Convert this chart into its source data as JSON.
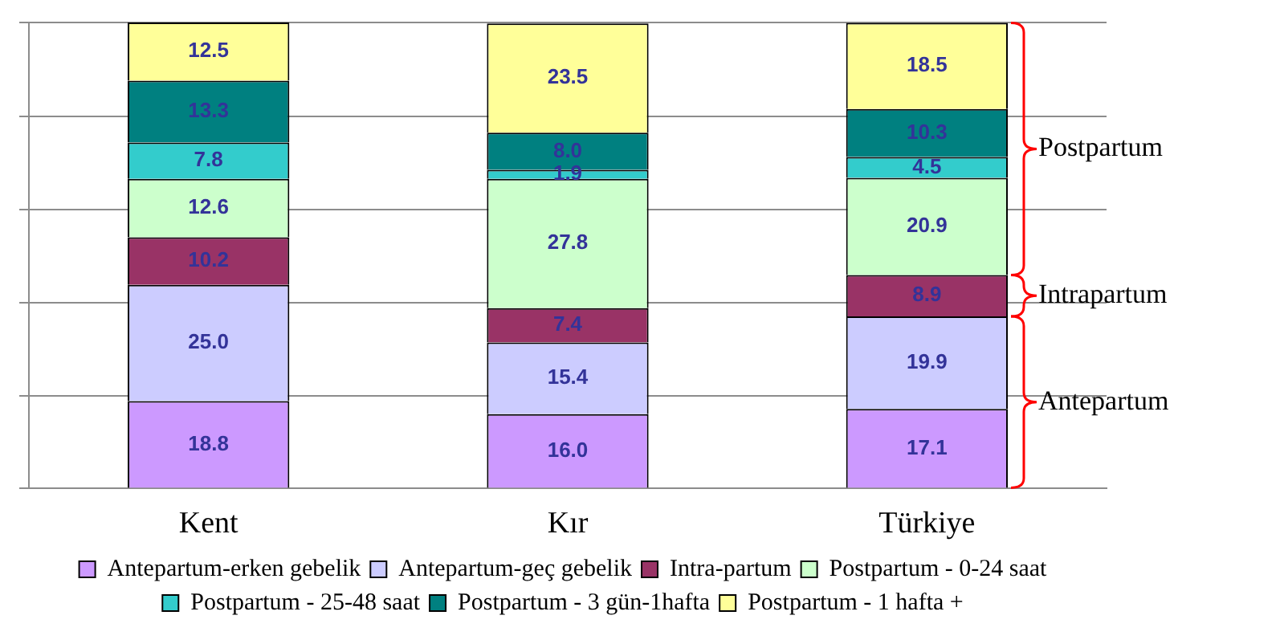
{
  "chart_data": {
    "type": "bar",
    "stacked": true,
    "categories": [
      "Kent",
      "Kır",
      "Türkiye"
    ],
    "series": [
      {
        "name": "Antepartum-erken gebelik",
        "color": "#cc99ff",
        "values": [
          18.8,
          16.0,
          17.1
        ],
        "value_labels": [
          "18.8",
          "16.0",
          "17.1"
        ]
      },
      {
        "name": "Antepartum-geç gebelik",
        "color": "#ccccff",
        "values": [
          25.0,
          15.4,
          19.9
        ],
        "value_labels": [
          "25.0",
          "15.4",
          "19.9"
        ]
      },
      {
        "name": "Intra-partum",
        "color": "#993366",
        "values": [
          10.2,
          7.4,
          8.9
        ],
        "value_labels": [
          "10.2",
          "7.4",
          "8.9"
        ]
      },
      {
        "name": "Postpartum - 0-24 saat",
        "color": "#ccffcc",
        "values": [
          12.6,
          27.8,
          20.9
        ],
        "value_labels": [
          "12.6",
          "27.8",
          "20.9"
        ]
      },
      {
        "name": "Postpartum - 25-48 saat",
        "color": "#33cccc",
        "values": [
          7.8,
          1.9,
          4.5
        ],
        "value_labels": [
          "7.8",
          "1.9",
          "4.5"
        ]
      },
      {
        "name": "Postpartum - 3 gün-1hafta",
        "color": "#008080",
        "values": [
          13.3,
          8.0,
          10.3
        ],
        "value_labels": [
          "13.3",
          "8.0",
          "10.3"
        ]
      },
      {
        "name": "Postpartum - 1 hafta +",
        "color": "#ffff99",
        "values": [
          12.5,
          23.5,
          18.5
        ],
        "value_labels": [
          "12.5",
          "23.5",
          "18.5"
        ]
      }
    ],
    "ylim": [
      0,
      100.2
    ],
    "tick_labels": "x",
    "grid": "y",
    "legend": "bottom",
    "annotations": [
      "Antepartum",
      "Intrapartum",
      "Postpartum"
    ]
  }
}
